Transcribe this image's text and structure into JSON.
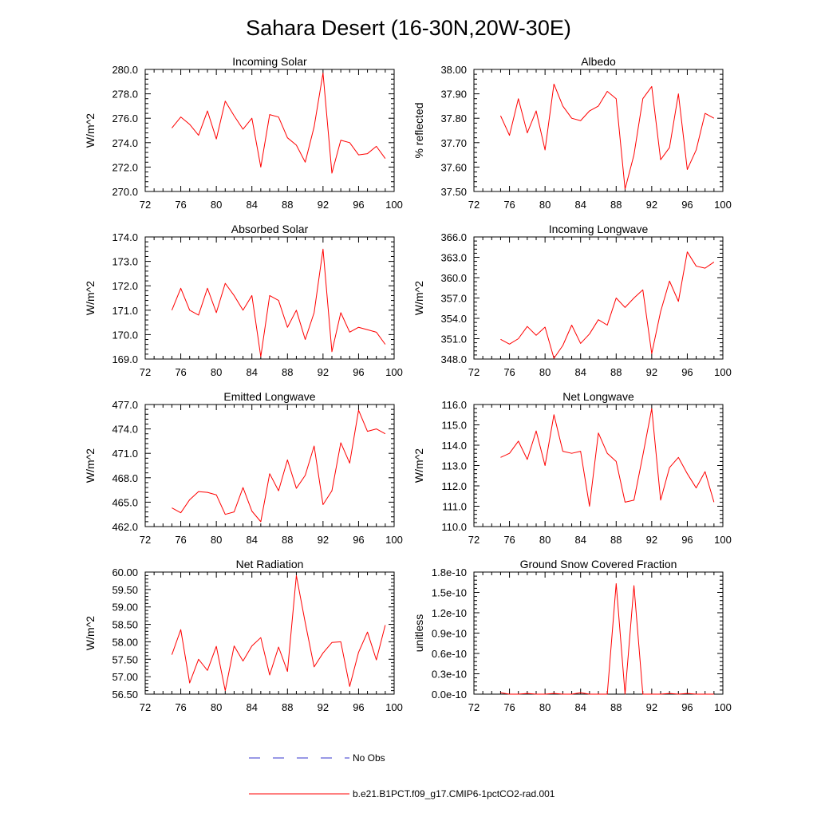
{
  "figure": {
    "title": "Sahara Desert (16-30N,20W-30E)",
    "legend": [
      {
        "label": "No Obs",
        "color": "#3333cc",
        "style": "dashed"
      },
      {
        "label": "b.e21.B1PCT.f09_g17.CMIP6-1pctCO2-rad.001",
        "color": "#ff0000",
        "style": "solid"
      }
    ]
  },
  "chart_data": [
    {
      "type": "line",
      "title": "Incoming Solar",
      "ylabel": "W/m^2",
      "xlim": [
        72,
        100
      ],
      "xticks": [
        72,
        76,
        80,
        84,
        88,
        92,
        96,
        100
      ],
      "ylim": [
        270,
        280
      ],
      "yticks": [
        "270.0",
        "272.0",
        "274.0",
        "276.0",
        "278.0",
        "280.0"
      ],
      "x": [
        75,
        76,
        77,
        78,
        79,
        80,
        81,
        82,
        83,
        84,
        85,
        86,
        87,
        88,
        89,
        90,
        91,
        92,
        93,
        94,
        95,
        96,
        97,
        98,
        99
      ],
      "series": [
        {
          "name": "b.e21.B1PCT.f09_g17.CMIP6-1pctCO2-rad.001",
          "color": "#ff0000",
          "values": [
            275.2,
            276.1,
            275.5,
            274.6,
            276.6,
            274.3,
            277.4,
            276.2,
            275.1,
            276.0,
            272.0,
            276.3,
            276.1,
            274.4,
            273.8,
            272.4,
            275.3,
            279.7,
            271.5,
            274.2,
            274.0,
            273.0,
            273.1,
            273.7,
            272.7
          ]
        }
      ]
    },
    {
      "type": "line",
      "title": "Albedo",
      "ylabel": "% reflected",
      "xlim": [
        72,
        100
      ],
      "xticks": [
        72,
        76,
        80,
        84,
        88,
        92,
        96,
        100
      ],
      "ylim": [
        37.5,
        38.0
      ],
      "yticks": [
        "37.50",
        "37.60",
        "37.70",
        "37.80",
        "37.90",
        "38.00"
      ],
      "x": [
        75,
        76,
        77,
        78,
        79,
        80,
        81,
        82,
        83,
        84,
        85,
        86,
        87,
        88,
        89,
        90,
        91,
        92,
        93,
        94,
        95,
        96,
        97,
        98,
        99
      ],
      "series": [
        {
          "name": "b.e21.B1PCT.f09_g17.CMIP6-1pctCO2-rad.001",
          "color": "#ff0000",
          "values": [
            37.81,
            37.73,
            37.88,
            37.74,
            37.83,
            37.67,
            37.94,
            37.85,
            37.8,
            37.79,
            37.83,
            37.85,
            37.91,
            37.88,
            37.51,
            37.65,
            37.88,
            37.93,
            37.63,
            37.68,
            37.9,
            37.59,
            37.67,
            37.82,
            37.8
          ]
        }
      ]
    },
    {
      "type": "line",
      "title": "Absorbed Solar",
      "ylabel": "W/m^2",
      "xlim": [
        72,
        100
      ],
      "xticks": [
        72,
        76,
        80,
        84,
        88,
        92,
        96,
        100
      ],
      "ylim": [
        169,
        174
      ],
      "yticks": [
        "169.0",
        "170.0",
        "171.0",
        "172.0",
        "173.0",
        "174.0"
      ],
      "x": [
        75,
        76,
        77,
        78,
        79,
        80,
        81,
        82,
        83,
        84,
        85,
        86,
        87,
        88,
        89,
        90,
        91,
        92,
        93,
        94,
        95,
        96,
        97,
        98,
        99
      ],
      "series": [
        {
          "name": "b.e21.B1PCT.f09_g17.CMIP6-1pctCO2-rad.001",
          "color": "#ff0000",
          "values": [
            171.0,
            171.9,
            171.0,
            170.8,
            171.9,
            170.9,
            172.1,
            171.6,
            171.0,
            171.6,
            169.1,
            171.6,
            171.4,
            170.3,
            171.0,
            169.8,
            170.9,
            173.5,
            169.3,
            170.9,
            170.1,
            170.3,
            170.2,
            170.1,
            169.6
          ]
        }
      ]
    },
    {
      "type": "line",
      "title": "Incoming Longwave",
      "ylabel": "W/m^2",
      "xlim": [
        72,
        100
      ],
      "xticks": [
        72,
        76,
        80,
        84,
        88,
        92,
        96,
        100
      ],
      "ylim": [
        348,
        366
      ],
      "yticks": [
        "348.0",
        "351.0",
        "354.0",
        "357.0",
        "360.0",
        "363.0",
        "366.0"
      ],
      "x": [
        75,
        76,
        77,
        78,
        79,
        80,
        81,
        82,
        83,
        84,
        85,
        86,
        87,
        88,
        89,
        90,
        91,
        92,
        93,
        94,
        95,
        96,
        97,
        98,
        99
      ],
      "series": [
        {
          "name": "b.e21.B1PCT.f09_g17.CMIP6-1pctCO2-rad.001",
          "color": "#ff0000",
          "values": [
            350.9,
            350.2,
            351.0,
            352.8,
            351.5,
            352.7,
            348.1,
            350.0,
            353.0,
            350.3,
            351.7,
            353.8,
            353.0,
            357.0,
            355.6,
            357.0,
            358.2,
            348.8,
            355.0,
            359.5,
            356.5,
            363.8,
            361.7,
            361.4,
            362.3
          ]
        }
      ]
    },
    {
      "type": "line",
      "title": "Emitted Longwave",
      "ylabel": "W/m^2",
      "xlim": [
        72,
        100
      ],
      "xticks": [
        72,
        76,
        80,
        84,
        88,
        92,
        96,
        100
      ],
      "ylim": [
        462,
        477
      ],
      "yticks": [
        "462.0",
        "465.0",
        "468.0",
        "471.0",
        "474.0",
        "477.0"
      ],
      "x": [
        75,
        76,
        77,
        78,
        79,
        80,
        81,
        82,
        83,
        84,
        85,
        86,
        87,
        88,
        89,
        90,
        91,
        92,
        93,
        94,
        95,
        96,
        97,
        98,
        99
      ],
      "series": [
        {
          "name": "b.e21.B1PCT.f09_g17.CMIP6-1pctCO2-rad.001",
          "color": "#ff0000",
          "values": [
            464.3,
            463.7,
            465.3,
            466.3,
            466.2,
            465.9,
            463.5,
            463.8,
            466.8,
            463.9,
            462.6,
            468.5,
            466.4,
            470.2,
            466.7,
            468.3,
            471.9,
            464.7,
            466.4,
            472.3,
            469.8,
            476.3,
            473.7,
            474.0,
            473.4
          ]
        }
      ]
    },
    {
      "type": "line",
      "title": "Net Longwave",
      "ylabel": "W/m^2",
      "xlim": [
        72,
        100
      ],
      "xticks": [
        72,
        76,
        80,
        84,
        88,
        92,
        96,
        100
      ],
      "ylim": [
        110,
        116
      ],
      "yticks": [
        "110.0",
        "111.0",
        "112.0",
        "113.0",
        "114.0",
        "115.0",
        "116.0"
      ],
      "x": [
        75,
        76,
        77,
        78,
        79,
        80,
        81,
        82,
        83,
        84,
        85,
        86,
        87,
        88,
        89,
        90,
        91,
        92,
        93,
        94,
        95,
        96,
        97,
        98,
        99
      ],
      "series": [
        {
          "name": "b.e21.B1PCT.f09_g17.CMIP6-1pctCO2-rad.001",
          "color": "#ff0000",
          "values": [
            113.4,
            113.6,
            114.2,
            113.3,
            114.7,
            113.0,
            115.5,
            113.7,
            113.6,
            113.7,
            111.0,
            114.6,
            113.6,
            113.2,
            111.2,
            111.3,
            113.5,
            115.8,
            111.3,
            112.9,
            113.4,
            112.6,
            111.9,
            112.7,
            111.2
          ]
        }
      ]
    },
    {
      "type": "line",
      "title": "Net Radiation",
      "ylabel": "W/m^2",
      "xlim": [
        72,
        100
      ],
      "xticks": [
        72,
        76,
        80,
        84,
        88,
        92,
        96,
        100
      ],
      "ylim": [
        56.5,
        60.0
      ],
      "yticks": [
        "56.50",
        "57.00",
        "57.50",
        "58.00",
        "58.50",
        "59.00",
        "59.50",
        "60.00"
      ],
      "x": [
        75,
        76,
        77,
        78,
        79,
        80,
        81,
        82,
        83,
        84,
        85,
        86,
        87,
        88,
        89,
        90,
        91,
        92,
        93,
        94,
        95,
        96,
        97,
        98,
        99
      ],
      "series": [
        {
          "name": "b.e21.B1PCT.f09_g17.CMIP6-1pctCO2-rad.001",
          "color": "#ff0000",
          "values": [
            57.63,
            58.35,
            56.82,
            57.5,
            57.18,
            57.87,
            56.6,
            57.88,
            57.45,
            57.88,
            58.12,
            57.05,
            57.85,
            57.15,
            59.9,
            58.55,
            57.28,
            57.68,
            57.98,
            58.0,
            56.72,
            57.7,
            58.28,
            57.48,
            58.48
          ]
        }
      ]
    },
    {
      "type": "line",
      "title": "Ground Snow Covered Fraction",
      "ylabel": "unitless",
      "xlim": [
        72,
        100
      ],
      "xticks": [
        72,
        76,
        80,
        84,
        88,
        92,
        96,
        100
      ],
      "ylim": [
        0,
        1.8e-10
      ],
      "yticks": [
        "0.0e-10",
        "0.3e-10",
        "0.6e-10",
        "0.9e-10",
        "1.2e-10",
        "1.5e-10",
        "1.8e-10"
      ],
      "x": [
        75,
        76,
        77,
        78,
        79,
        80,
        81,
        82,
        83,
        84,
        85,
        86,
        87,
        88,
        89,
        90,
        91,
        92,
        93,
        94,
        95,
        96,
        97,
        98,
        99
      ],
      "series": [
        {
          "name": "b.e21.B1PCT.f09_g17.CMIP6-1pctCO2-rad.001",
          "color": "#ff0000",
          "values": [
            2e-12,
            0,
            0,
            1e-12,
            0,
            0,
            1e-12,
            0,
            0,
            2e-12,
            0,
            0,
            0,
            1.63e-10,
            0,
            1.6e-10,
            0,
            0,
            0,
            1e-12,
            0,
            1e-12,
            0,
            0,
            0
          ]
        }
      ]
    }
  ]
}
